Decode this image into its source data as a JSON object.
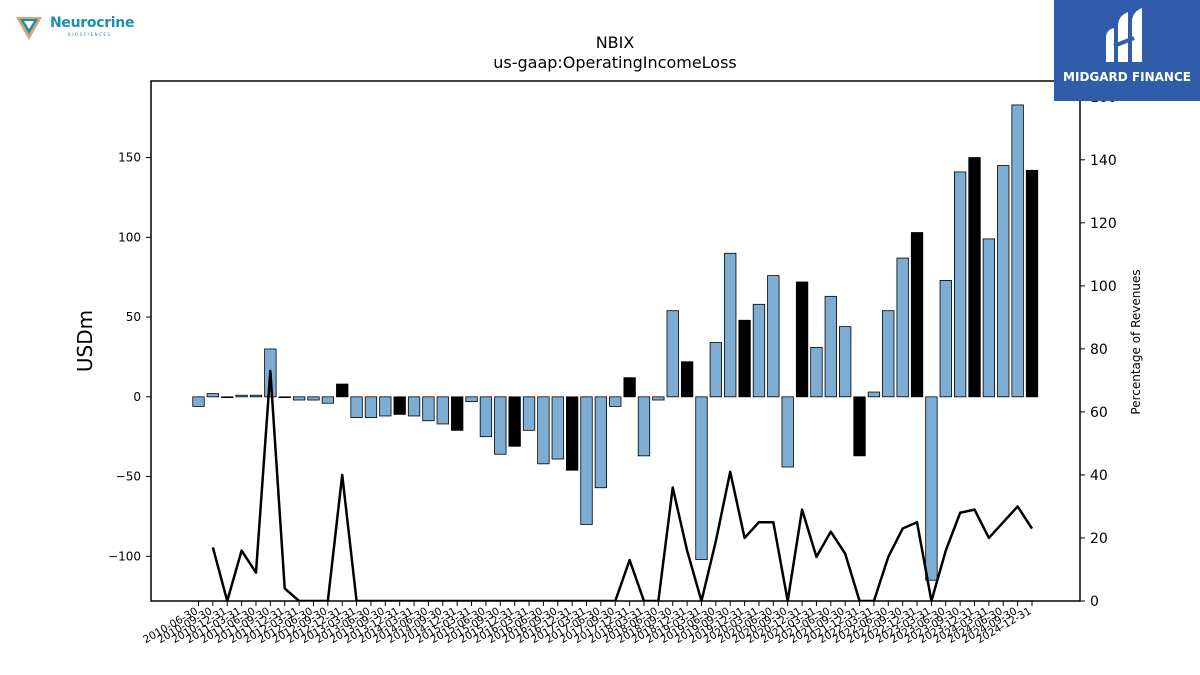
{
  "branding": {
    "left_logo": "Neurocrine",
    "left_logo_sub": "BIOSCIENCES",
    "right_logo": "MIDGARD FINANCE",
    "right_logo_color": "#2f5daa"
  },
  "chart_data": {
    "type": "bar",
    "title": "NBIX",
    "subtitle": "us-gaap:OperatingIncomeLoss",
    "ylabel": "USDm",
    "y2label": "Percentage of Revenues",
    "ylim": [
      -128,
      198
    ],
    "y2lim": [
      0,
      165
    ],
    "yticks": [
      -100,
      -50,
      0,
      50,
      100,
      150
    ],
    "y2ticks": [
      0,
      20,
      40,
      60,
      80,
      100,
      120,
      140,
      160
    ],
    "colors": {
      "quarter": "#7eadd4",
      "annual": "#000000",
      "line": "#000000"
    },
    "x": [
      "2010-06-30",
      "2010-09-30",
      "2010-12-31",
      "2011-03-31",
      "2011-06-30",
      "2011-09-30",
      "2011-12-31",
      "2012-03-31",
      "2012-06-30",
      "2012-09-30",
      "2012-12-31",
      "2013-03-31",
      "2013-06-30",
      "2013-09-30",
      "2013-12-31",
      "2014-03-31",
      "2014-06-30",
      "2014-09-30",
      "2014-12-31",
      "2015-03-31",
      "2015-06-30",
      "2015-09-30",
      "2015-12-31",
      "2016-03-31",
      "2016-06-30",
      "2016-09-30",
      "2016-12-31",
      "2017-03-31",
      "2017-06-30",
      "2017-09-30",
      "2017-12-31",
      "2018-03-31",
      "2018-06-30",
      "2018-09-30",
      "2018-12-31",
      "2019-03-31",
      "2019-06-30",
      "2019-09-30",
      "2019-12-31",
      "2020-03-31",
      "2020-06-30",
      "2020-09-30",
      "2020-12-31",
      "2021-03-31",
      "2021-06-30",
      "2021-09-30",
      "2021-12-31",
      "2022-03-31",
      "2022-06-30",
      "2022-09-30",
      "2022-12-31",
      "2023-03-31",
      "2023-06-30",
      "2023-09-30",
      "2023-12-31",
      "2024-03-31",
      "2024-06-30",
      "2024-09-30",
      "2024-12-31"
    ],
    "series": [
      {
        "kind": "bar",
        "values": [
          -6,
          2,
          0,
          1,
          1,
          30,
          0,
          -2,
          -2,
          -4,
          8,
          -13,
          -13,
          -12,
          -11,
          -12,
          -15,
          -17,
          -21,
          -3,
          -25,
          -36,
          -31,
          -21,
          -42,
          -39,
          -46,
          -80,
          -57,
          -6,
          12,
          -37,
          -2,
          54,
          22,
          -102,
          34,
          90,
          48,
          58,
          76,
          -44,
          72,
          31,
          63,
          44,
          -37,
          3,
          54,
          87,
          103,
          -115,
          73,
          141,
          150,
          99,
          145,
          183,
          142
        ],
        "annual": [
          false,
          false,
          false,
          false,
          false,
          false,
          false,
          false,
          false,
          false,
          true,
          false,
          false,
          false,
          true,
          false,
          false,
          false,
          true,
          false,
          false,
          false,
          true,
          false,
          false,
          false,
          true,
          false,
          false,
          false,
          true,
          false,
          false,
          false,
          true,
          false,
          false,
          false,
          true,
          false,
          false,
          false,
          true,
          false,
          false,
          false,
          true,
          false,
          false,
          false,
          true,
          false,
          false,
          false,
          true,
          false,
          false,
          false,
          true
        ]
      },
      {
        "kind": "line",
        "axis": "y2",
        "values": [
          null,
          17,
          0,
          16,
          9,
          73,
          4,
          0,
          0,
          0,
          40,
          0,
          0,
          0,
          0,
          0,
          0,
          0,
          0,
          0,
          0,
          0,
          0,
          0,
          0,
          0,
          0,
          0,
          0,
          0,
          13,
          0,
          0,
          36,
          16,
          0,
          19,
          41,
          20,
          25,
          25,
          0,
          29,
          14,
          22,
          15,
          0,
          0,
          14,
          23,
          25,
          0,
          16,
          28,
          29,
          20,
          25,
          30,
          23
        ]
      }
    ]
  }
}
